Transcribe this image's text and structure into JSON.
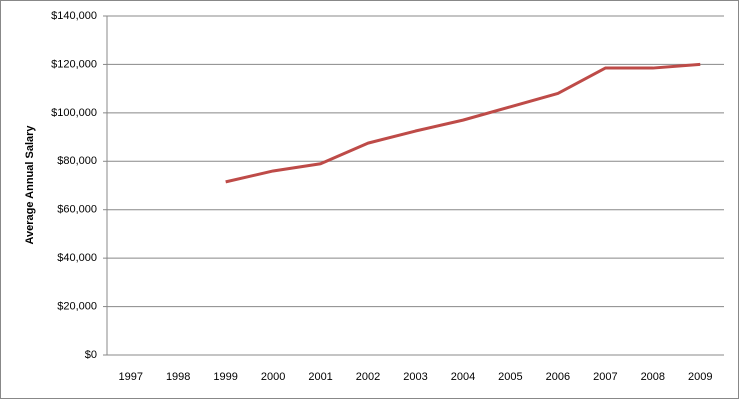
{
  "chart_data": {
    "type": "line",
    "y_label": "Average Annual Salary",
    "categories": [
      "1997",
      "1998",
      "1999",
      "2000",
      "2001",
      "2002",
      "2003",
      "2004",
      "2005",
      "2006",
      "2007",
      "2008",
      "2009"
    ],
    "series": [
      {
        "color": "#be4b48",
        "values": [
          null,
          null,
          71500,
          76000,
          79000,
          87500,
          92500,
          97000,
          102500,
          108000,
          118500,
          118500,
          120000
        ]
      }
    ],
    "ylim": [
      0,
      140000
    ],
    "yticks": [
      {
        "value": 0,
        "label": "$0"
      },
      {
        "value": 20000,
        "label": "$20,000"
      },
      {
        "value": 40000,
        "label": "$40,000"
      },
      {
        "value": 60000,
        "label": "$60,000"
      },
      {
        "value": 80000,
        "label": "$80,000"
      },
      {
        "value": 100000,
        "label": "$100,000"
      },
      {
        "value": 120000,
        "label": "$120,000"
      },
      {
        "value": 140000,
        "label": "$140,000"
      }
    ],
    "grid": true
  }
}
